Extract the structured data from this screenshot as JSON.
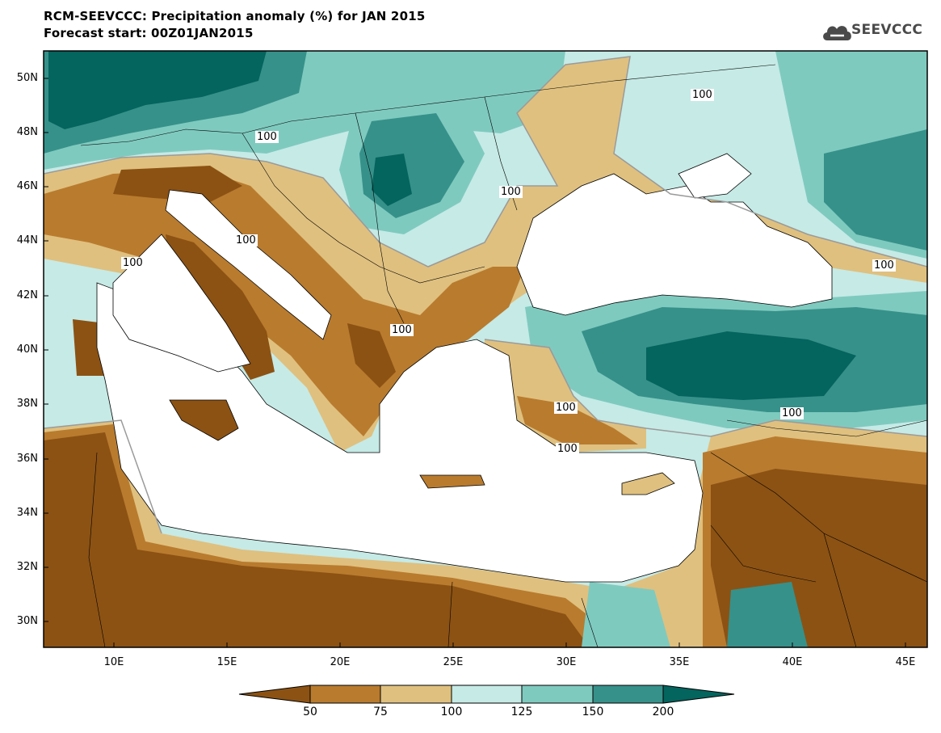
{
  "header": {
    "title_line1": "RCM-SEEVCCC: Precipitation anomaly (%) for JAN 2015",
    "title_line2": "Forecast start: 00Z01JAN2015",
    "logo_text": "SEEVCCC"
  },
  "map": {
    "lat_labels": [
      "50N",
      "48N",
      "46N",
      "44N",
      "42N",
      "40N",
      "38N",
      "36N",
      "34N",
      "32N",
      "30N"
    ],
    "lon_labels": [
      "10E",
      "15E",
      "20E",
      "25E",
      "30E",
      "35E",
      "40E",
      "45E"
    ],
    "contour_labels": [
      "100",
      "100",
      "100",
      "100",
      "100",
      "100",
      "100",
      "100",
      "100",
      "100"
    ]
  },
  "colorbar": {
    "ticks": [
      "50",
      "75",
      "100",
      "125",
      "150",
      "200"
    ],
    "colors": [
      "#8c5213",
      "#b97b2e",
      "#dfc07f",
      "#c6eae6",
      "#7fcabf",
      "#36918a",
      "#04645e"
    ]
  },
  "colors": {
    "dry_strong": "#8c5213",
    "dry": "#b97b2e",
    "dry_light": "#dfc07f",
    "wet_light": "#c6eae6",
    "wet": "#7fcabf",
    "wet_strong": "#36918a",
    "wet_extreme": "#04645e",
    "sea": "#ffffff"
  }
}
